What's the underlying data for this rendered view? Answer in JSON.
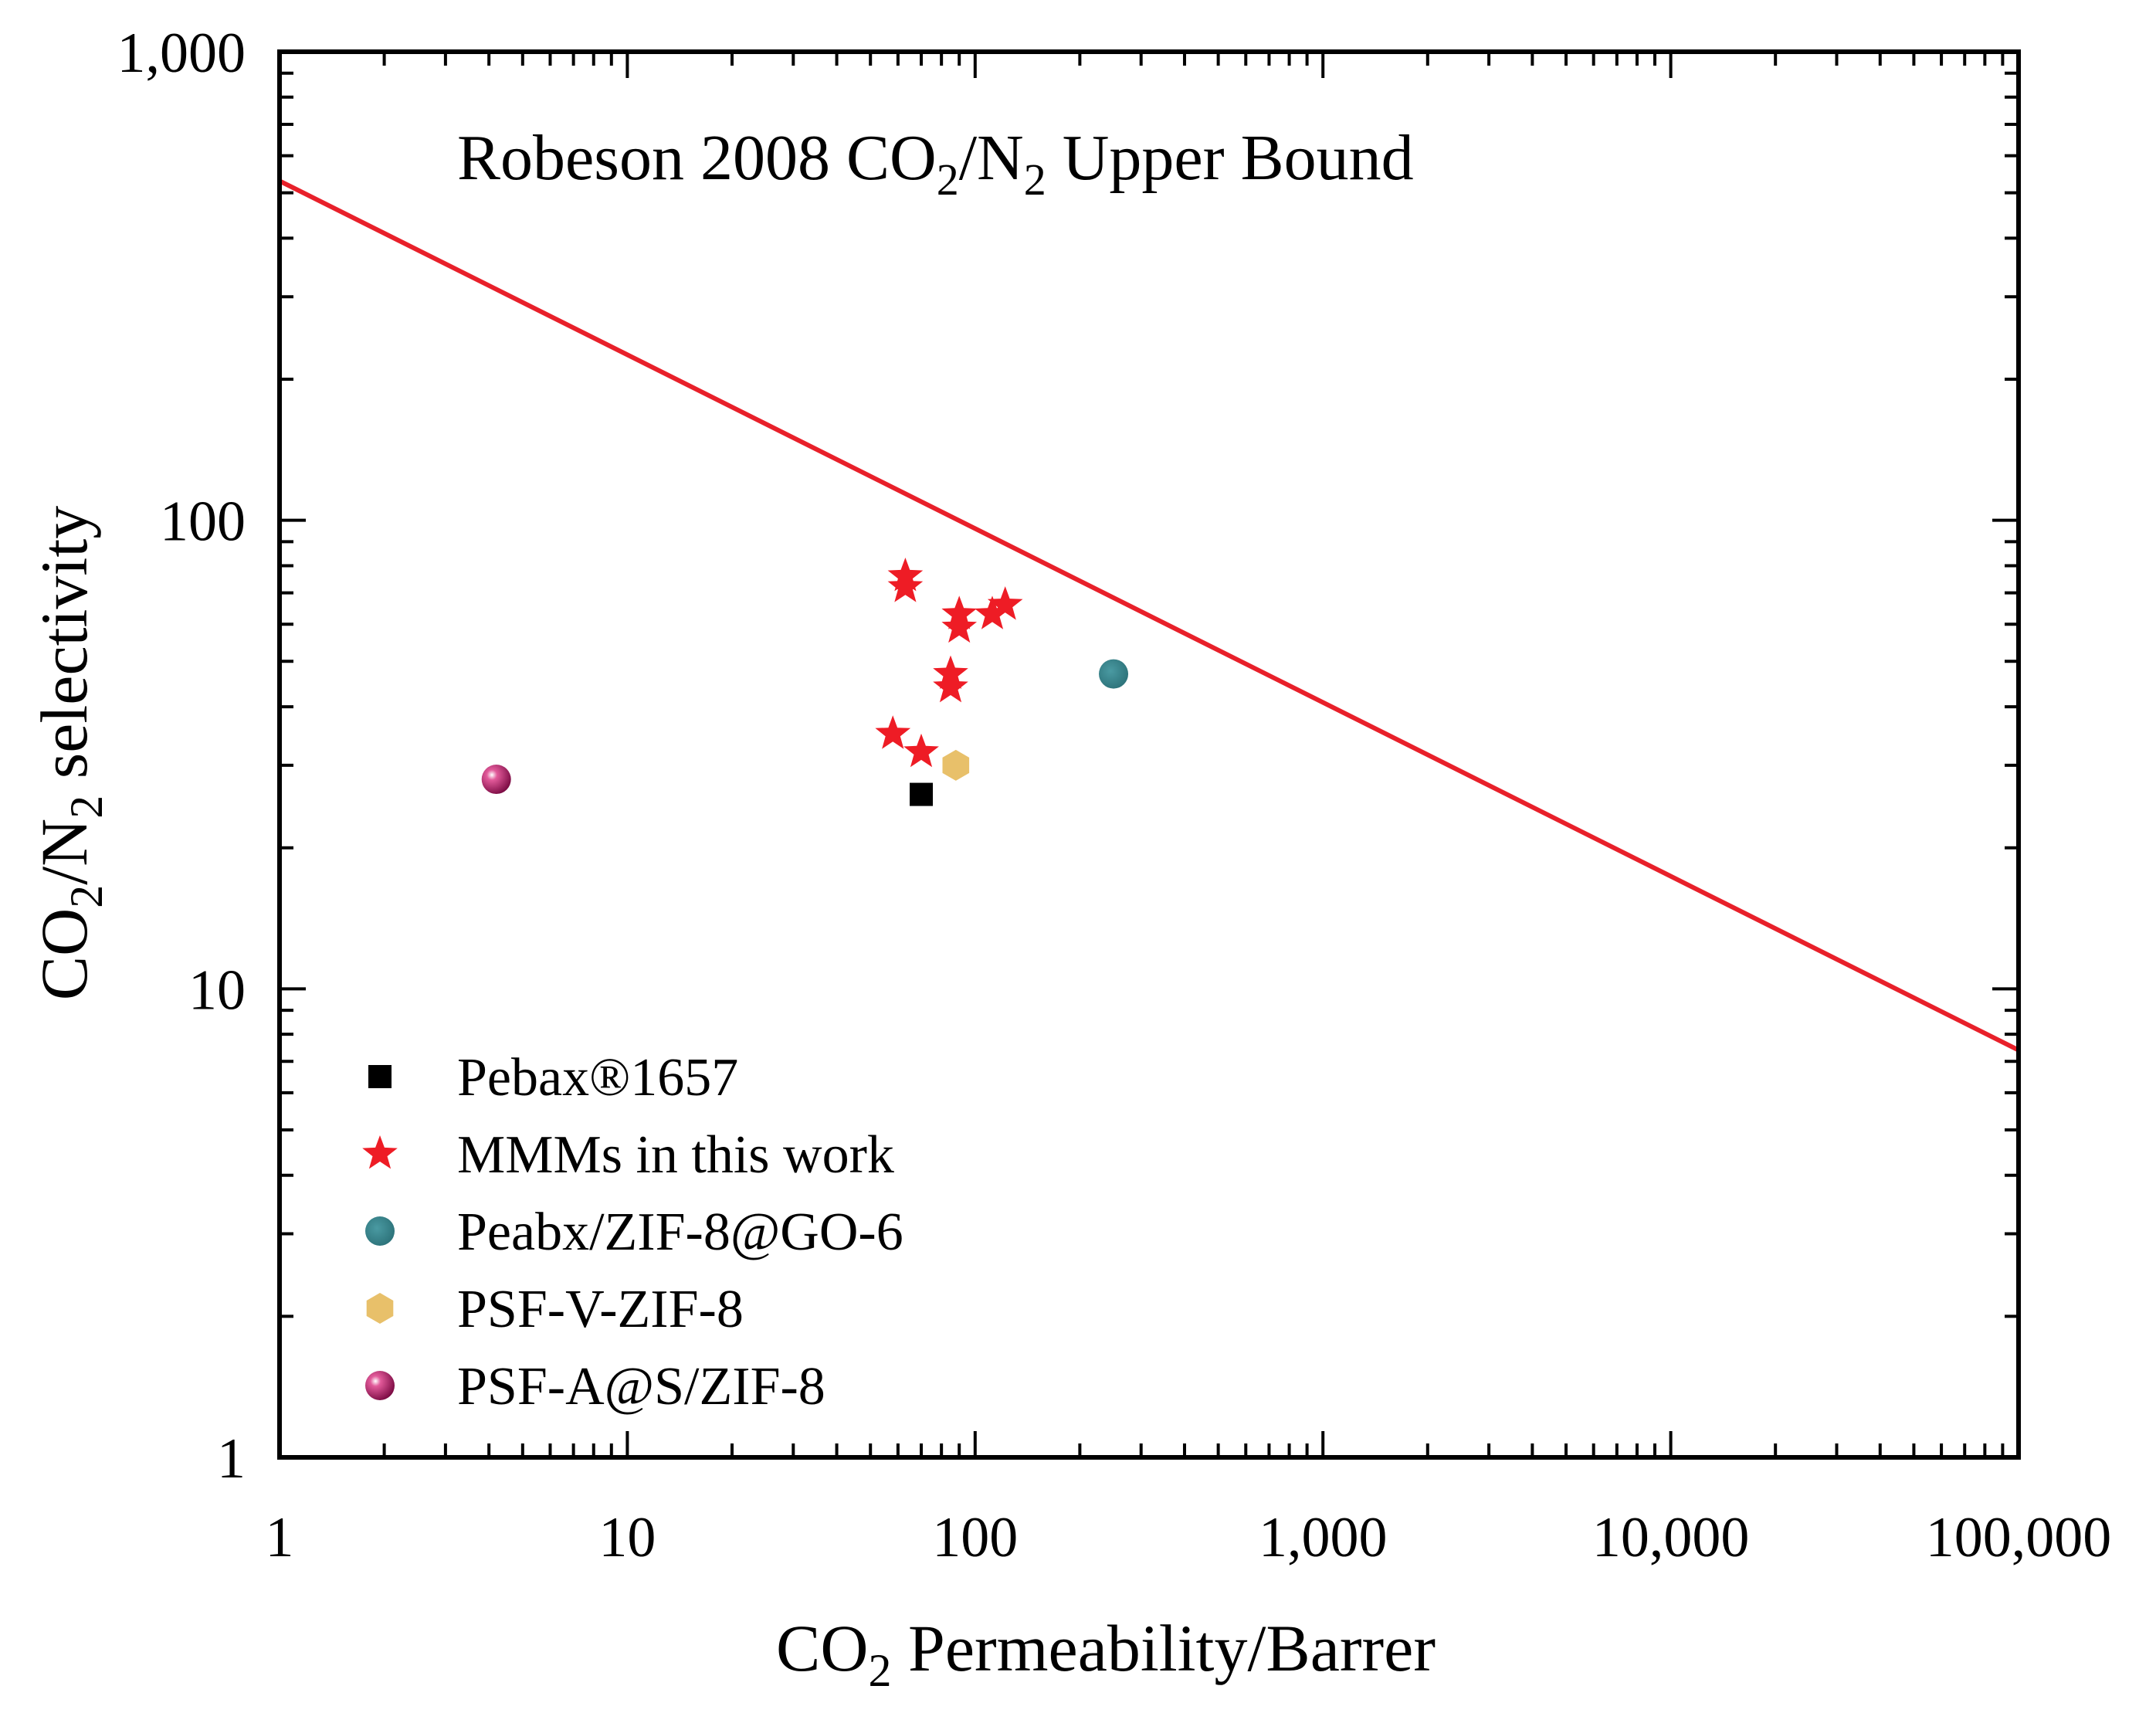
{
  "chart_data": {
    "type": "scatter",
    "xscale": "log",
    "yscale": "log",
    "xlim": [
      1,
      100000
    ],
    "ylim": [
      1,
      1000
    ],
    "xticks": [
      1,
      10,
      100,
      1000,
      10000,
      100000
    ],
    "xtick_labels": [
      "1",
      "10",
      "100",
      "1,000",
      "10,000",
      "100,000"
    ],
    "yticks": [
      1,
      10,
      100,
      1000
    ],
    "ytick_labels": [
      "1",
      "10",
      "100",
      "1,000"
    ],
    "xlabel": {
      "main": "CO",
      "sub": "2",
      "rest": " Permeability/Barrer"
    },
    "ylabel": {
      "a": "CO",
      "sub1": "2",
      "b": "/N",
      "sub2": "2",
      "c": " selectivity"
    },
    "annotation": {
      "a": "Robeson 2008 CO",
      "sub1": "2",
      "b": "/N",
      "sub2": "2",
      "c": " Upper Bound"
    },
    "upper_bound": {
      "name": "Robeson 2008 CO2/N2 Upper Bound",
      "points": [
        [
          1,
          530
        ],
        [
          100000,
          7.4
        ]
      ],
      "color": "#e8202a"
    },
    "legend_position": "bottom-left",
    "series": [
      {
        "name": "Pebax®1657",
        "marker": "square",
        "color": "#000000",
        "points": [
          [
            70,
            26
          ]
        ]
      },
      {
        "name": "MMMs in this work",
        "marker": "star",
        "color": "#ee1c25",
        "points": [
          [
            63,
            76
          ],
          [
            63,
            72
          ],
          [
            90,
            63
          ],
          [
            90,
            59
          ],
          [
            112,
            63
          ],
          [
            122,
            66
          ],
          [
            85,
            47
          ],
          [
            85,
            44
          ],
          [
            58,
            35
          ],
          [
            70,
            32
          ]
        ]
      },
      {
        "name": "Peabx/ZIF-8@GO-6",
        "marker": "circle",
        "color": "#2e7d84",
        "points": [
          [
            250,
            47
          ]
        ]
      },
      {
        "name": "PSF-V-ZIF-8",
        "marker": "hexagon",
        "color": "#e8c06a",
        "points": [
          [
            88,
            30
          ]
        ]
      },
      {
        "name": "PSF-A@S/ZIF-8",
        "marker": "sphere",
        "color": "#a8145f",
        "points": [
          [
            4.2,
            28
          ]
        ]
      }
    ]
  }
}
